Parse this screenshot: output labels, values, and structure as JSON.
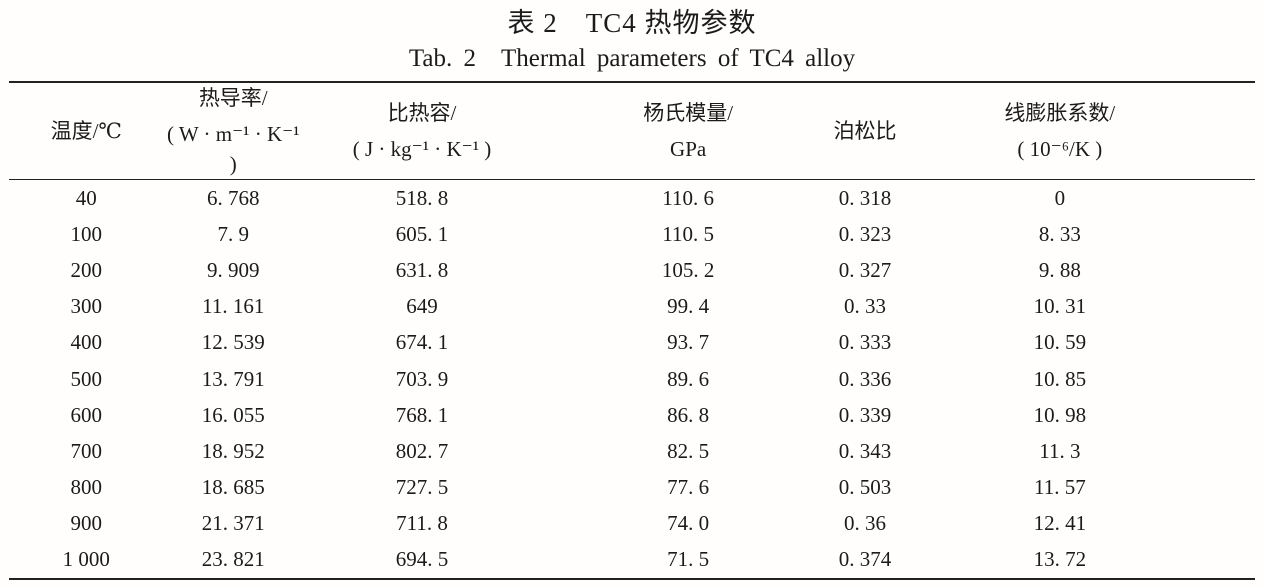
{
  "titles": {
    "zh": "表 2　TC4 热物参数",
    "en": "Tab. 2　Thermal parameters of TC4 alloy"
  },
  "table": {
    "columns": [
      {
        "line1": "温度/℃",
        "line2": ""
      },
      {
        "line1": "热导率/",
        "line2": "( W · m⁻¹ · K⁻¹ )"
      },
      {
        "line1": "比热容/",
        "line2": "( J · kg⁻¹ · K⁻¹ )"
      },
      {
        "line1": "杨氏模量/",
        "line2": "GPa"
      },
      {
        "line1": "泊松比",
        "line2": ""
      },
      {
        "line1": "线膨胀系数/",
        "line2": "( 10⁻⁶/K )"
      }
    ],
    "rows": [
      [
        "40",
        "6. 768",
        "518. 8",
        "110. 6",
        "0. 318",
        "0"
      ],
      [
        "100",
        "7. 9",
        "605. 1",
        "110. 5",
        "0. 323",
        "8. 33"
      ],
      [
        "200",
        "9. 909",
        "631. 8",
        "105. 2",
        "0. 327",
        "9. 88"
      ],
      [
        "300",
        "11. 161",
        "649",
        "99. 4",
        "0. 33",
        "10. 31"
      ],
      [
        "400",
        "12. 539",
        "674. 1",
        "93. 7",
        "0. 333",
        "10. 59"
      ],
      [
        "500",
        "13. 791",
        "703. 9",
        "89. 6",
        "0. 336",
        "10. 85"
      ],
      [
        "600",
        "16. 055",
        "768. 1",
        "86. 8",
        "0. 339",
        "10. 98"
      ],
      [
        "700",
        "18. 952",
        "802. 7",
        "82. 5",
        "0. 343",
        "11. 3"
      ],
      [
        "800",
        "18. 685",
        "727. 5",
        "77. 6",
        "0. 503",
        "11. 57"
      ],
      [
        "900",
        "21. 371",
        "711. 8",
        "74. 0",
        "0. 36",
        "12. 41"
      ],
      [
        "1 000",
        "23. 821",
        "694. 5",
        "71. 5",
        "0. 374",
        "13. 72"
      ]
    ]
  }
}
